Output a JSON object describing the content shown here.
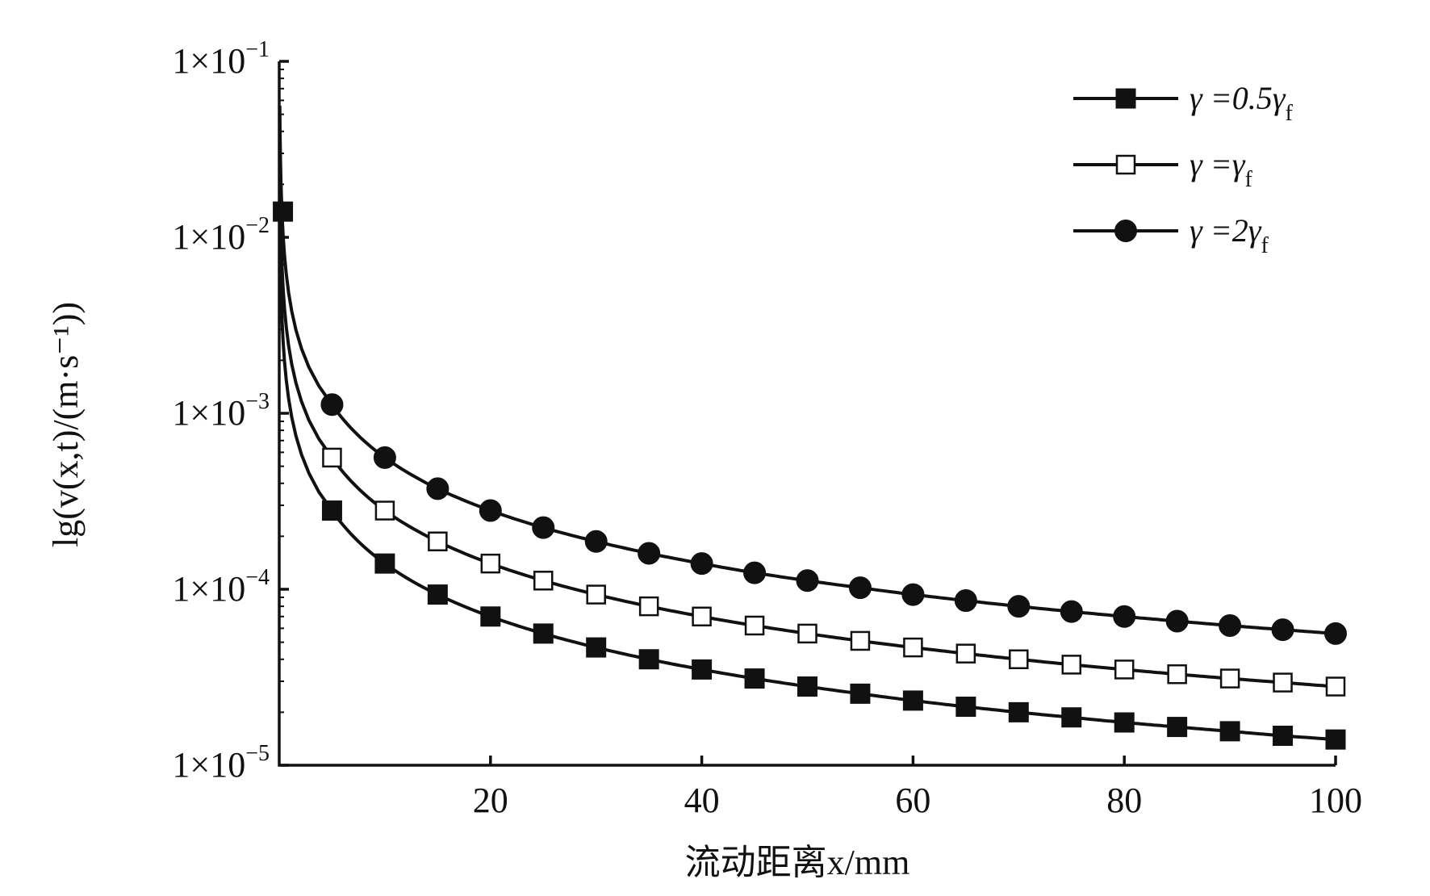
{
  "chart_data": {
    "type": "line",
    "title": "",
    "xlabel": "流动距离x/mm",
    "ylabel": "lg(v(x,t)/(m·s⁻¹))",
    "x_scale": "linear",
    "y_scale": "log",
    "xlim": [
      0,
      100
    ],
    "ylim": [
      1e-05,
      0.1
    ],
    "x_ticks": [
      20,
      40,
      60,
      80,
      100
    ],
    "x_tick_labels": [
      "20",
      "40",
      "60",
      "80",
      "100"
    ],
    "y_ticks": [
      0.1,
      0.01,
      0.001,
      0.0001,
      1e-05
    ],
    "y_tick_labels": [
      {
        "base": "1×10",
        "exp": "−1"
      },
      {
        "base": "1×10",
        "exp": "−2"
      },
      {
        "base": "1×10",
        "exp": "−3"
      },
      {
        "base": "1×10",
        "exp": "−4"
      },
      {
        "base": "1×10",
        "exp": "−5"
      }
    ],
    "grid": false,
    "legend_position": "top-right",
    "marker_x": [
      5,
      10,
      15,
      20,
      25,
      30,
      35,
      40,
      45,
      50,
      55,
      60,
      65,
      70,
      75,
      80,
      85,
      90,
      95,
      100
    ],
    "series": [
      {
        "name": "γ =0.5γf",
        "legend_main": "γ =0.5γ",
        "legend_sub": "f",
        "marker": "filled-square",
        "color": "#111111",
        "curve_start": {
          "x": 0.05,
          "y": 0.014
        },
        "values": [
          0.00028,
          0.00014,
          9.33e-05,
          7e-05,
          5.6e-05,
          4.67e-05,
          4e-05,
          3.5e-05,
          3.11e-05,
          2.8e-05,
          2.55e-05,
          2.33e-05,
          2.15e-05,
          2e-05,
          1.87e-05,
          1.75e-05,
          1.65e-05,
          1.56e-05,
          1.47e-05,
          1.4e-05
        ]
      },
      {
        "name": "γ =γf",
        "legend_main": "γ =γ",
        "legend_sub": "f",
        "marker": "open-square",
        "color": "#111111",
        "curve_start": {
          "x": 0.05,
          "y": 0.028
        },
        "values": [
          0.00056,
          0.00028,
          0.000187,
          0.00014,
          0.000112,
          9.33e-05,
          8e-05,
          7e-05,
          6.22e-05,
          5.6e-05,
          5.09e-05,
          4.67e-05,
          4.31e-05,
          4e-05,
          3.73e-05,
          3.5e-05,
          3.29e-05,
          3.11e-05,
          2.95e-05,
          2.8e-05
        ]
      },
      {
        "name": "γ =2γf",
        "legend_main": "γ =2γ",
        "legend_sub": "f",
        "marker": "filled-circle",
        "color": "#111111",
        "curve_start": {
          "x": 0.05,
          "y": 0.056
        },
        "values": [
          0.00112,
          0.00056,
          0.000373,
          0.00028,
          0.000224,
          0.000187,
          0.00016,
          0.00014,
          0.000124,
          0.000112,
          0.000102,
          9.33e-05,
          8.62e-05,
          8e-05,
          7.47e-05,
          7e-05,
          6.59e-05,
          6.22e-05,
          5.89e-05,
          5.6e-05
        ]
      }
    ]
  }
}
